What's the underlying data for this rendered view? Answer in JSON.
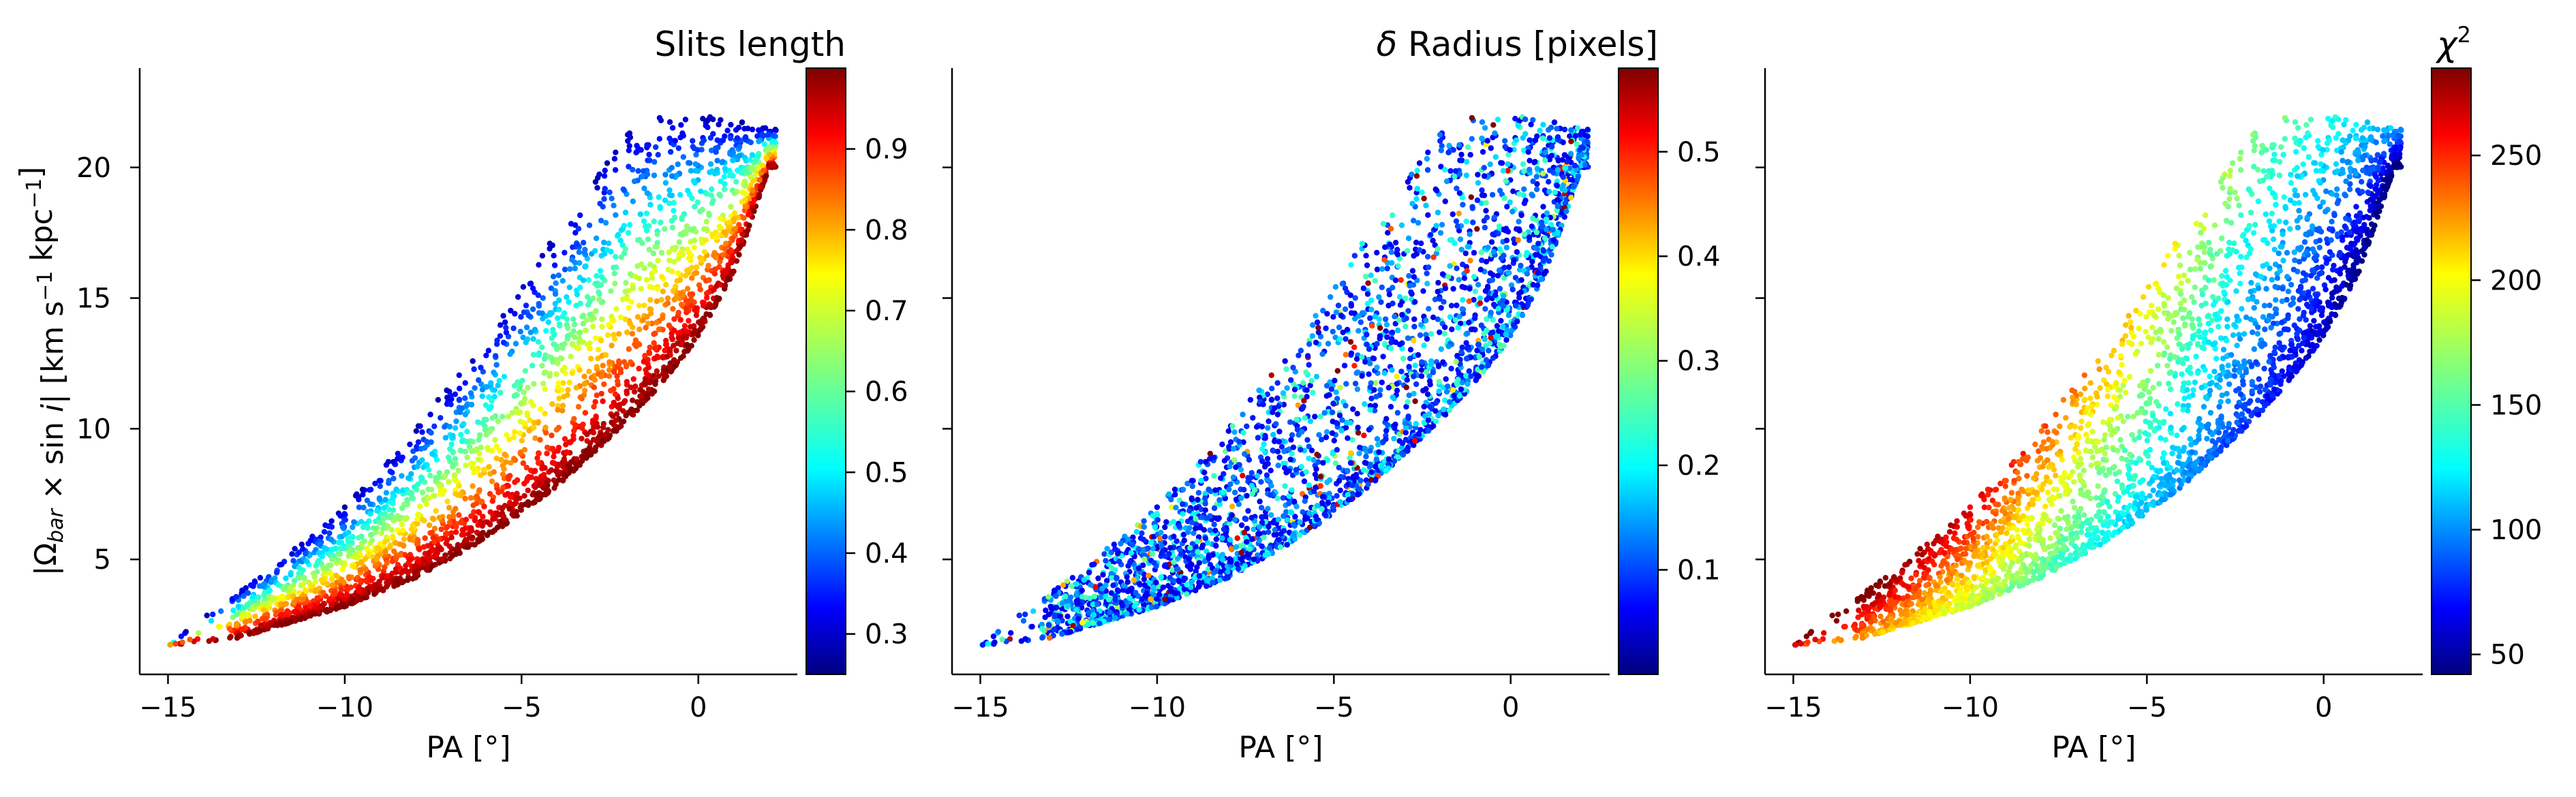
{
  "chart_data": [
    {
      "type": "scatter",
      "title": "",
      "xlabel": "PA [°]",
      "ylabel": "|Ω_bar × sin i|   [km s⁻¹ kpc⁻¹]",
      "xlim": [
        -15.8,
        2.8
      ],
      "ylim": [
        0.6,
        23.8
      ],
      "xticks": [
        "−15",
        "−10",
        "−5",
        "0"
      ],
      "xtick_values": [
        -15,
        -10,
        -5,
        0
      ],
      "yticks": [
        "5",
        "10",
        "15",
        "20"
      ],
      "ytick_values": [
        5,
        10,
        15,
        20
      ],
      "colorbar": {
        "label": "Slits length",
        "colormap": "jet",
        "range": [
          0.25,
          1.0
        ],
        "ticks": [
          "0.3",
          "0.4",
          "0.5",
          "0.6",
          "0.7",
          "0.8",
          "0.9"
        ],
        "tick_values": [
          0.3,
          0.4,
          0.5,
          0.6,
          0.7,
          0.8,
          0.9
        ]
      },
      "color_trend": "high values (red) along the lower edge of the point cloud, low values (blue) at the upper edge",
      "envelope": {
        "x": [
          -15,
          -13,
          -12,
          -10,
          -8,
          -6,
          -4,
          -2,
          -1,
          0,
          1,
          2
        ],
        "lower_y": [
          1.7,
          2.0,
          2.4,
          3.2,
          4.3,
          5.8,
          7.8,
          10.3,
          11.8,
          13.5,
          16.0,
          20.0
        ],
        "upper_y": [
          1.7,
          3.8,
          4.8,
          7.0,
          10.0,
          13.5,
          17.5,
          21.5,
          22.0,
          22.0,
          21.8,
          21.5
        ]
      },
      "point_count_estimate": 3000
    },
    {
      "type": "scatter",
      "title": "",
      "xlabel": "PA [°]",
      "ylabel": "",
      "xlim": [
        -15.8,
        2.8
      ],
      "ylim": [
        0.6,
        23.8
      ],
      "xticks": [
        "−15",
        "−10",
        "−5",
        "0"
      ],
      "xtick_values": [
        -15,
        -10,
        -5,
        0
      ],
      "colorbar": {
        "label": "δ Radius [pixels]",
        "colormap": "jet",
        "range": [
          0.0,
          0.58
        ],
        "ticks": [
          "0.1",
          "0.2",
          "0.3",
          "0.4",
          "0.5"
        ],
        "tick_values": [
          0.1,
          0.2,
          0.3,
          0.4,
          0.5
        ]
      },
      "color_trend": "mostly low values (blue) with scattered higher values throughout",
      "envelope": {
        "x": [
          -15,
          -13,
          -12,
          -10,
          -8,
          -6,
          -4,
          -2,
          -1,
          0,
          1,
          2
        ],
        "lower_y": [
          1.7,
          2.0,
          2.4,
          3.2,
          4.3,
          5.8,
          7.8,
          10.3,
          11.8,
          13.5,
          16.0,
          20.0
        ],
        "upper_y": [
          1.7,
          3.8,
          4.8,
          7.0,
          10.0,
          13.5,
          17.5,
          21.5,
          22.0,
          22.0,
          21.8,
          21.5
        ]
      },
      "point_count_estimate": 3000
    },
    {
      "type": "scatter",
      "title": "",
      "xlabel": "PA [°]",
      "ylabel": "",
      "xlim": [
        -15.8,
        2.8
      ],
      "ylim": [
        0.6,
        23.8
      ],
      "xticks": [
        "−15",
        "−10",
        "−5",
        "0"
      ],
      "xtick_values": [
        -15,
        -10,
        -5,
        0
      ],
      "colorbar": {
        "label": "χ²",
        "colormap": "jet",
        "range": [
          42,
          285
        ],
        "ticks": [
          "50",
          "100",
          "150",
          "200",
          "250"
        ],
        "tick_values": [
          50,
          100,
          150,
          200,
          250
        ]
      },
      "color_trend": "high values (red) at lower-left, lower values (blue) toward upper-right",
      "envelope": {
        "x": [
          -15,
          -13,
          -12,
          -10,
          -8,
          -6,
          -4,
          -2,
          -1,
          0,
          1,
          2
        ],
        "lower_y": [
          1.7,
          2.0,
          2.4,
          3.2,
          4.3,
          5.8,
          7.8,
          10.3,
          11.8,
          13.5,
          16.0,
          20.0
        ],
        "upper_y": [
          1.7,
          3.8,
          4.8,
          7.0,
          10.0,
          13.5,
          17.5,
          21.5,
          22.0,
          22.0,
          21.8,
          21.5
        ]
      },
      "point_count_estimate": 3000
    }
  ],
  "colors": {
    "jet_stops": [
      "#00007f",
      "#0000ff",
      "#007fff",
      "#00ffff",
      "#7fff7f",
      "#ffff00",
      "#ff7f00",
      "#ff0000",
      "#7f0000"
    ],
    "axis": "#000000",
    "background": "#ffffff"
  }
}
